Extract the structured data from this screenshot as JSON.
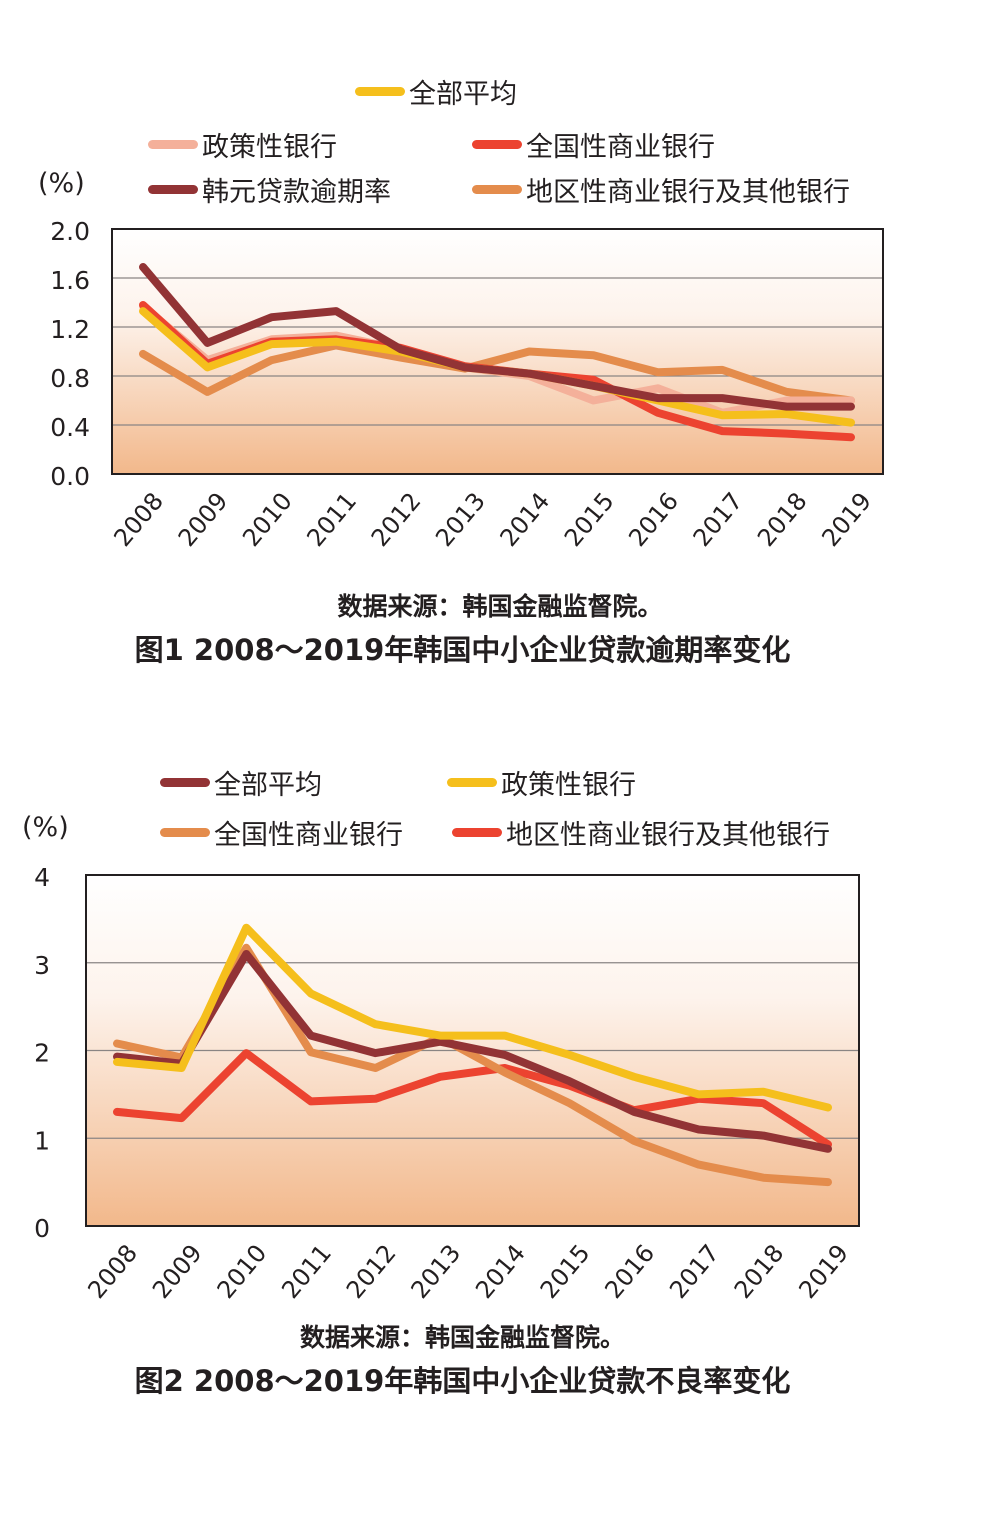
{
  "figures": [
    {
      "unit_label": "(%)",
      "legend": [
        {
          "label": "全部平均",
          "color": "#f5bf1c"
        },
        {
          "label": "政策性银行",
          "color": "#f4b09a"
        },
        {
          "label": "全国性商业银行",
          "color": "#ec4330"
        },
        {
          "label": "韩元贷款逾期率",
          "color": "#923335"
        },
        {
          "label": "地区性商业银行及其他银行",
          "color": "#e48c4c"
        }
      ],
      "source": "数据来源：韩国金融监督院。",
      "caption": "图1  2008～2019年韩国中小企业贷款逾期率变化"
    },
    {
      "unit_label": "(%)",
      "legend": [
        {
          "label": "全部平均",
          "color": "#923335"
        },
        {
          "label": "政策性银行",
          "color": "#f5bf1c"
        },
        {
          "label": "全国性商业银行",
          "color": "#e48c4c"
        },
        {
          "label": "地区性商业银行及其他银行",
          "color": "#ec4330"
        }
      ],
      "source": "数据来源：韩国金融监督院。",
      "caption": "图2  2008～2019年韩国中小企业贷款不良率变化"
    }
  ],
  "chart_data": [
    {
      "type": "line",
      "title": "图1  2008～2019年韩国中小企业贷款逾期率变化",
      "xlabel": "",
      "ylabel": "(%)",
      "ylim": [
        0,
        2.0
      ],
      "yticks": [
        "2.0",
        "1.6",
        "1.2",
        "0.8",
        "0.4",
        "0.0"
      ],
      "ytick_values": [
        2.0,
        1.6,
        1.2,
        0.8,
        0.4,
        0.0
      ],
      "grid": true,
      "legend_position": "top",
      "categories": [
        "2008",
        "2009",
        "2010",
        "2011",
        "2012",
        "2013",
        "2014",
        "2015",
        "2016",
        "2017",
        "2018",
        "2019"
      ],
      "series": [
        {
          "name": "地区性商业银行及其他银行",
          "color": "#e48c4c",
          "values": [
            0.98,
            0.67,
            0.93,
            1.05,
            0.95,
            0.86,
            1.0,
            0.97,
            0.83,
            0.85,
            0.67,
            0.6
          ]
        },
        {
          "name": "政策性银行",
          "color": "#f4b09a",
          "values": [
            1.37,
            0.93,
            1.1,
            1.13,
            1.02,
            0.87,
            0.8,
            0.6,
            0.7,
            0.5,
            0.6,
            0.6
          ]
        },
        {
          "name": "全国性商业银行",
          "color": "#ec4330",
          "values": [
            1.38,
            0.9,
            1.08,
            1.1,
            1.03,
            0.88,
            0.82,
            0.77,
            0.5,
            0.35,
            0.33,
            0.3
          ]
        },
        {
          "name": "全部平均",
          "color": "#f5bf1c",
          "values": [
            1.33,
            0.87,
            1.06,
            1.08,
            1.0,
            0.87,
            0.82,
            0.72,
            0.6,
            0.48,
            0.49,
            0.42
          ]
        },
        {
          "name": "韩元贷款逾期率",
          "color": "#923335",
          "values": [
            1.69,
            1.07,
            1.28,
            1.33,
            1.02,
            0.87,
            0.82,
            0.72,
            0.62,
            0.62,
            0.55,
            0.55
          ]
        }
      ]
    },
    {
      "type": "line",
      "title": "图2  2008～2019年韩国中小企业贷款不良率变化",
      "xlabel": "",
      "ylabel": "(%)",
      "ylim": [
        0,
        4
      ],
      "yticks": [
        "4",
        "3",
        "2",
        "1",
        "0"
      ],
      "ytick_values": [
        4,
        3,
        2,
        1,
        0
      ],
      "grid": true,
      "legend_position": "top",
      "categories": [
        "2008",
        "2009",
        "2010",
        "2011",
        "2012",
        "2013",
        "2014",
        "2015",
        "2016",
        "2017",
        "2018",
        "2019"
      ],
      "series": [
        {
          "name": "地区性商业银行及其他银行",
          "color": "#ec4330",
          "values": [
            1.3,
            1.23,
            1.97,
            1.42,
            1.45,
            1.7,
            1.8,
            1.6,
            1.32,
            1.45,
            1.4,
            0.93
          ]
        },
        {
          "name": "全国性商业银行",
          "color": "#e48c4c",
          "values": [
            2.08,
            1.92,
            3.17,
            1.98,
            1.8,
            2.15,
            1.75,
            1.4,
            0.97,
            0.7,
            0.55,
            0.5
          ]
        },
        {
          "name": "全部平均",
          "color": "#923335",
          "values": [
            1.93,
            1.85,
            3.1,
            2.17,
            1.97,
            2.1,
            1.95,
            1.65,
            1.3,
            1.1,
            1.03,
            0.88
          ]
        },
        {
          "name": "政策性银行",
          "color": "#f5bf1c",
          "values": [
            1.87,
            1.8,
            3.4,
            2.65,
            2.3,
            2.17,
            2.17,
            1.95,
            1.7,
            1.5,
            1.53,
            1.35
          ]
        }
      ]
    }
  ]
}
